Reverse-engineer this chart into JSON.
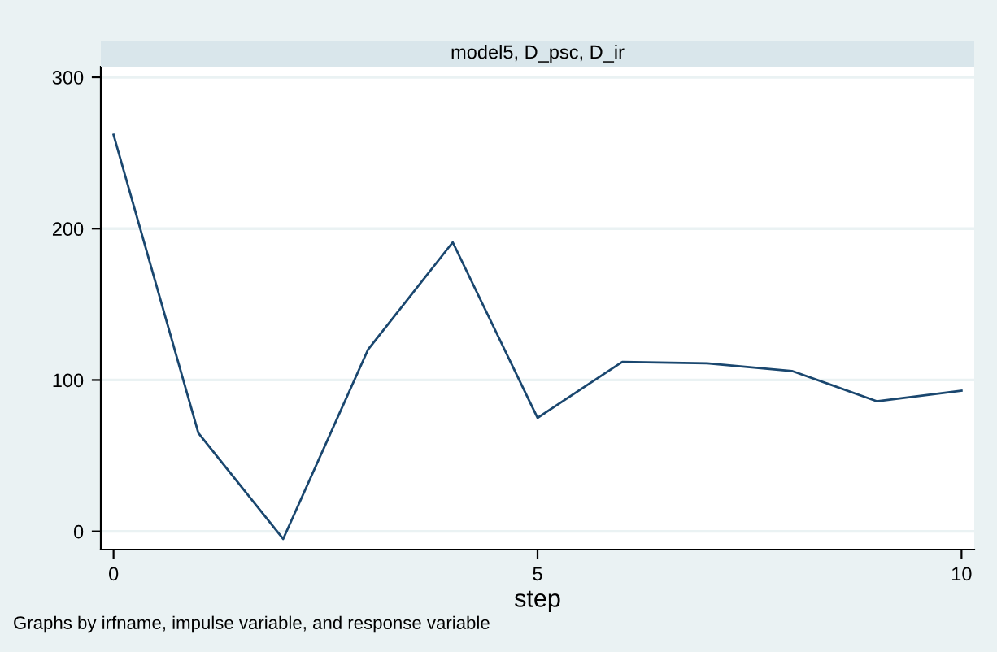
{
  "chart_data": {
    "type": "line",
    "title": "model5, D_psc, D_ir",
    "xlabel": "step",
    "x": [
      0,
      1,
      2,
      3,
      4,
      5,
      6,
      7,
      8,
      9,
      10
    ],
    "series": [
      {
        "color": "#1a476f",
        "values": [
          262,
          65,
          -5,
          120,
          191,
          75,
          112,
          111,
          106,
          86,
          93
        ]
      }
    ],
    "xlim": [
      -0.15,
      10.15
    ],
    "ylim": [
      -12,
      307
    ],
    "xticks": [
      0,
      5,
      10
    ],
    "yticks": [
      0,
      100,
      200,
      300
    ],
    "grid": "y",
    "marker": "none",
    "line_style": "solid",
    "annotations": [
      "Graphs by irfname, impulse variable, and response variable"
    ]
  }
}
